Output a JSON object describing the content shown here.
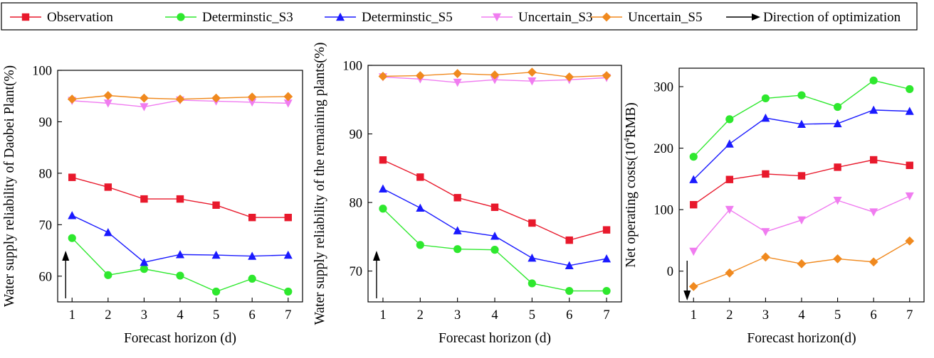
{
  "legend": [
    {
      "name": "Observation",
      "color": "#e8192c",
      "marker": "square"
    },
    {
      "name": "Determinstic_S3",
      "color": "#2ee82e",
      "marker": "circle"
    },
    {
      "name": "Determinstic_S5",
      "color": "#1a1aff",
      "marker": "triangle-up"
    },
    {
      "name": "Uncertain_S3",
      "color": "#f07cf0",
      "marker": "triangle-down"
    },
    {
      "name": "Uncertain_S5",
      "color": "#f0891e",
      "marker": "diamond"
    },
    {
      "name": "Direction of optimization",
      "color": "#000000",
      "marker": "arrow"
    }
  ],
  "chart_data": [
    {
      "type": "line",
      "xlabel": "Forecast horizon (d)",
      "ylabel": "Water supply reliability of Daobei Plant(%)",
      "x": [
        1,
        2,
        3,
        4,
        5,
        6,
        7
      ],
      "xlim": [
        0.6,
        7.4
      ],
      "ylim": [
        55,
        100
      ],
      "yticks": [
        60,
        70,
        80,
        90,
        100
      ],
      "optimization_direction": "up",
      "series": [
        {
          "name": "Observation",
          "values": [
            79.2,
            77.3,
            75.0,
            75.0,
            73.8,
            71.4,
            71.4
          ]
        },
        {
          "name": "Determinstic_S3",
          "values": [
            67.4,
            60.2,
            61.4,
            60.1,
            57.0,
            59.5,
            57.0
          ]
        },
        {
          "name": "Determinstic_S5",
          "values": [
            71.8,
            68.5,
            62.7,
            64.2,
            64.1,
            63.9,
            64.1
          ]
        },
        {
          "name": "Uncertain_S3",
          "values": [
            94.1,
            93.6,
            92.9,
            94.2,
            94.0,
            93.8,
            93.6
          ]
        },
        {
          "name": "Uncertain_S5",
          "values": [
            94.4,
            95.1,
            94.6,
            94.4,
            94.6,
            94.8,
            94.9
          ]
        }
      ]
    },
    {
      "type": "line",
      "xlabel": "Forecast horizon (d)",
      "ylabel": "Water supply reliability of the remaining plants(%)",
      "x": [
        1,
        2,
        3,
        4,
        5,
        6,
        7
      ],
      "xlim": [
        0.6,
        7.4
      ],
      "ylim": [
        65.5,
        100
      ],
      "yticks": [
        70,
        80,
        90,
        100
      ],
      "optimization_direction": "up",
      "series": [
        {
          "name": "Observation",
          "values": [
            86.2,
            83.7,
            80.7,
            79.3,
            77.0,
            74.5,
            76.0
          ]
        },
        {
          "name": "Determinstic_S3",
          "values": [
            79.1,
            73.8,
            73.2,
            73.1,
            68.2,
            67.1,
            67.1
          ]
        },
        {
          "name": "Determinstic_S5",
          "values": [
            82.0,
            79.2,
            75.9,
            75.1,
            71.9,
            70.8,
            71.8
          ]
        },
        {
          "name": "Uncertain_S3",
          "values": [
            98.3,
            98.0,
            97.5,
            97.9,
            97.7,
            97.9,
            98.2
          ]
        },
        {
          "name": "Uncertain_S5",
          "values": [
            98.4,
            98.5,
            98.8,
            98.6,
            99.0,
            98.3,
            98.5
          ]
        }
      ]
    },
    {
      "type": "line",
      "xlabel": "Forecast horizon(d)",
      "ylabel": "Net operating costs(10⁴RMB)",
      "x": [
        1,
        2,
        3,
        4,
        5,
        6,
        7
      ],
      "xlim": [
        0.6,
        7.4
      ],
      "ylim": [
        -50,
        330
      ],
      "yticks": [
        0,
        100,
        200,
        300
      ],
      "optimization_direction": "down",
      "series": [
        {
          "name": "Observation",
          "values": [
            108,
            149,
            158,
            155,
            169,
            181,
            172
          ]
        },
        {
          "name": "Determinstic_S3",
          "values": [
            186,
            247,
            281,
            286,
            267,
            310,
            296
          ]
        },
        {
          "name": "Determinstic_S5",
          "values": [
            149,
            207,
            249,
            239,
            240,
            262,
            260
          ]
        },
        {
          "name": "Uncertain_S3",
          "values": [
            32,
            100,
            64,
            83,
            115,
            96,
            122
          ]
        },
        {
          "name": "Uncertain_S5",
          "values": [
            -25,
            -3,
            23,
            12,
            20,
            15,
            49
          ]
        }
      ]
    }
  ]
}
